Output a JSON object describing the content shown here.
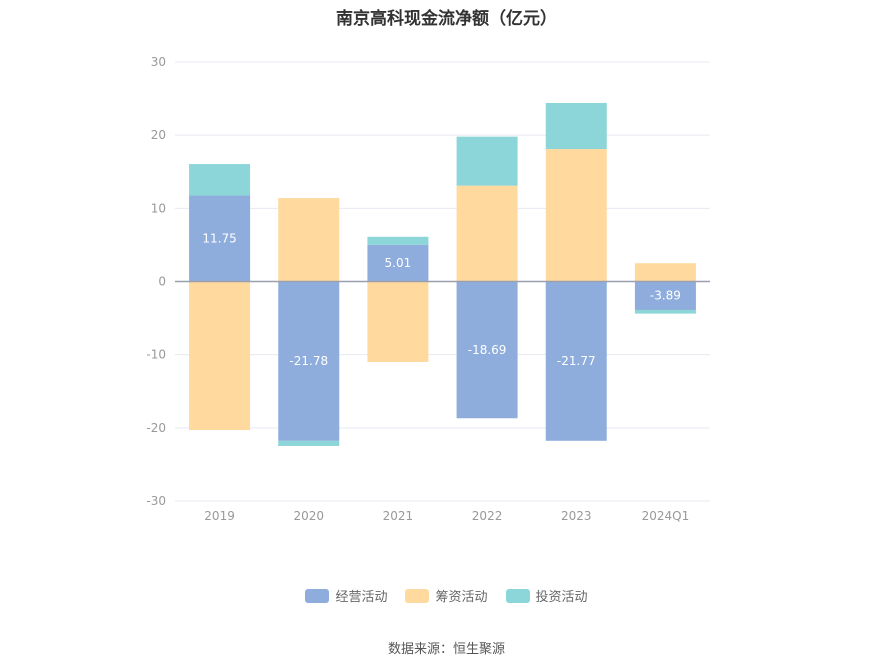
{
  "chart_data": {
    "type": "bar",
    "stacked": true,
    "title": "南京高科现金流净额（亿元）",
    "categories": [
      "2019",
      "2020",
      "2021",
      "2022",
      "2023",
      "2024Q1"
    ],
    "series": [
      {
        "name": "经营活动",
        "color": "#8eaddc",
        "values": [
          11.75,
          -21.78,
          5.01,
          -18.69,
          -21.77,
          -3.89
        ],
        "labels": [
          "11.75",
          "-21.78",
          "5.01",
          "-18.69",
          "-21.77",
          "-3.89"
        ]
      },
      {
        "name": "筹资活动",
        "color": "#ffd99e",
        "values": [
          -20.3,
          11.4,
          -11.0,
          13.1,
          18.1,
          2.5
        ]
      },
      {
        "name": "投资活动",
        "color": "#8cd5d9",
        "values": [
          4.3,
          -0.7,
          1.1,
          6.7,
          6.3,
          -0.5
        ]
      }
    ],
    "ylim": [
      -30,
      30
    ],
    "yticks": [
      -30,
      -20,
      -10,
      0,
      10,
      20,
      30
    ],
    "grid": true,
    "legend_position": "bottom"
  },
  "source": "数据来源：恒生聚源"
}
